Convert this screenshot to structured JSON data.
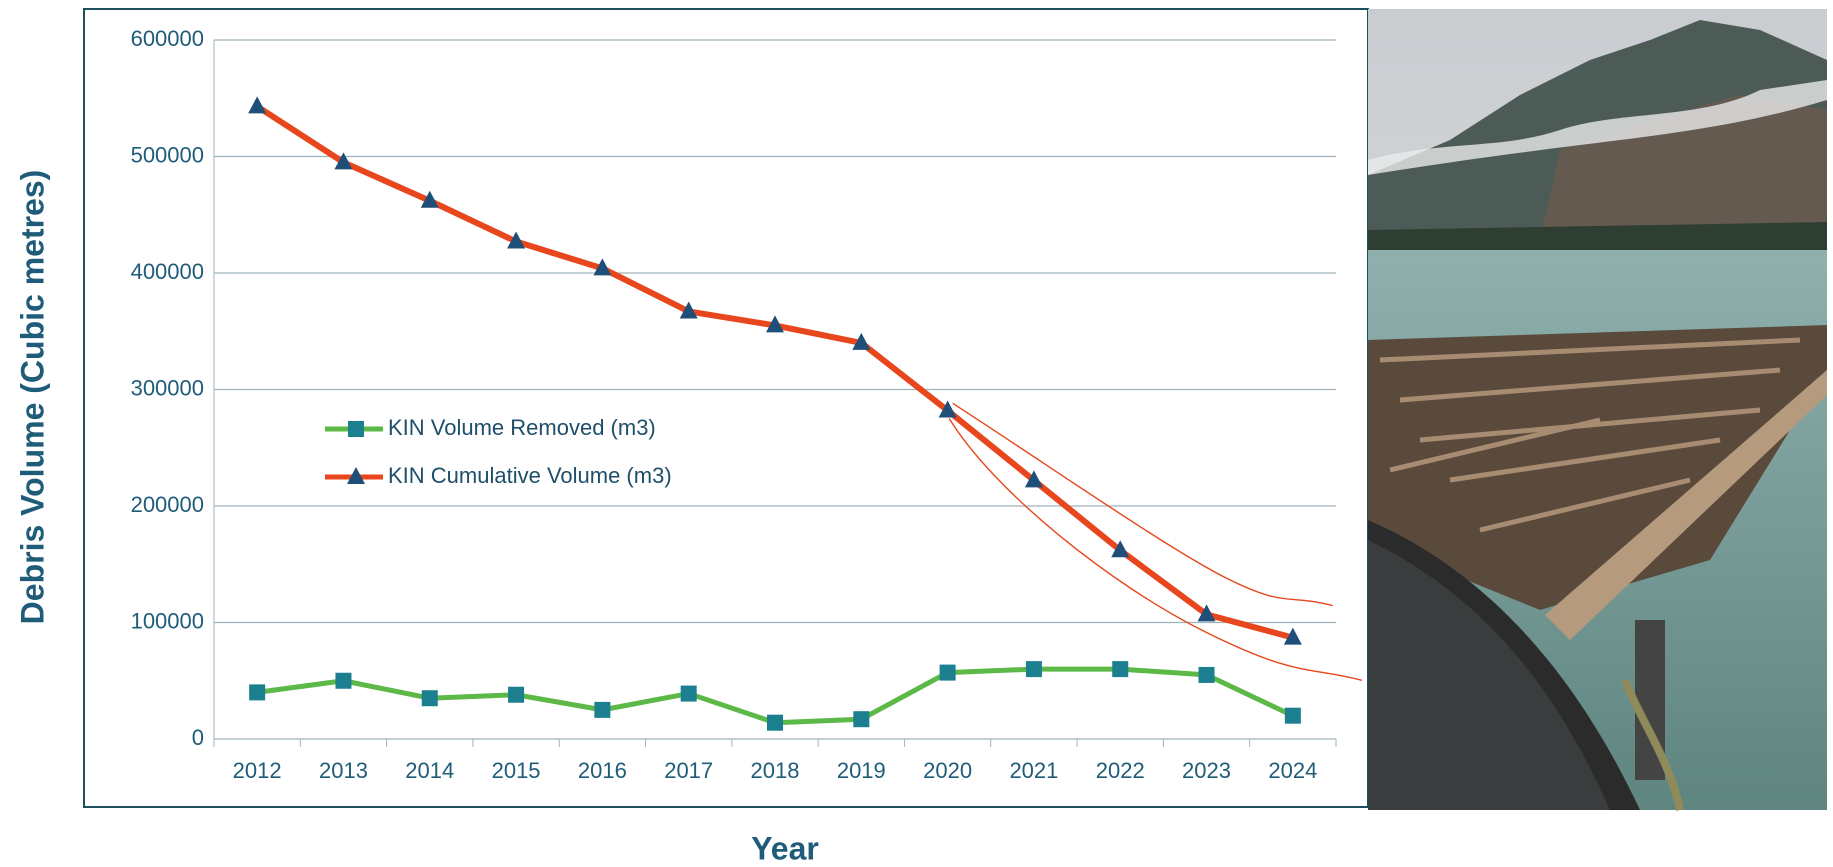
{
  "chart_data": {
    "type": "line",
    "x_label": "Year",
    "y_label": "Debris  Volume (Cubic metres)",
    "categories": [
      "2012",
      "2013",
      "2014",
      "2015",
      "2016",
      "2017",
      "2018",
      "2019",
      "2020",
      "2021",
      "2022",
      "2023",
      "2024"
    ],
    "series": [
      {
        "name": "KIN Volume Removed (m3)",
        "color": "#5cb847",
        "marker": "square",
        "marker_color": "#1b7f8f",
        "values": [
          40000,
          50000,
          35000,
          38000,
          25000,
          39000,
          14000,
          17000,
          57000,
          60000,
          60000,
          55000,
          20000
        ]
      },
      {
        "name": "KIN Cumulative Volume (m3)",
        "color": "#e8461c",
        "marker": "triangle",
        "marker_color": "#1f4e79",
        "values": [
          543000,
          495000,
          462000,
          427000,
          404000,
          367000,
          355000,
          340000,
          282000,
          222000,
          162000,
          107000,
          87000
        ]
      }
    ],
    "ylim": [
      0,
      600000
    ],
    "yticks": [
      0,
      100000,
      200000,
      300000,
      400000,
      500000,
      600000
    ],
    "grid": true
  }
}
